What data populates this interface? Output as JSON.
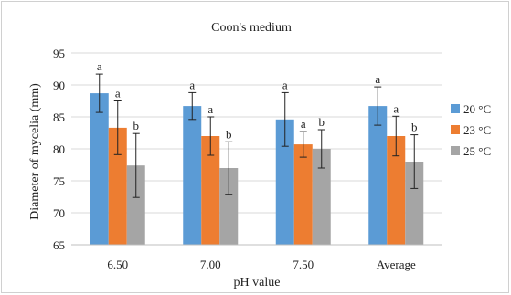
{
  "chart_data": {
    "type": "bar",
    "title": "Coon's medium",
    "xlabel": "pH value",
    "ylabel": "Diameter of mycelia (mm)",
    "ylim": [
      65,
      95
    ],
    "yticks": [
      65,
      70,
      75,
      80,
      85,
      90,
      95
    ],
    "grid": true,
    "legend_position": "right",
    "categories": [
      "6.50",
      "7.00",
      "7.50",
      "Average"
    ],
    "series": [
      {
        "name": "20 °C",
        "color": "#5b9bd5",
        "values": [
          88.7,
          86.7,
          84.6,
          86.7
        ],
        "errors": [
          3.0,
          2.1,
          4.2,
          3.0
        ],
        "labels": [
          "a",
          "a",
          "a",
          "a"
        ]
      },
      {
        "name": "23 °C",
        "color": "#ed7d31",
        "values": [
          83.3,
          82.0,
          80.7,
          82.0
        ],
        "errors": [
          4.2,
          3.0,
          2.0,
          3.1
        ],
        "labels": [
          "a",
          "a",
          "a",
          "a"
        ]
      },
      {
        "name": "25 °C",
        "color": "#a5a5a5",
        "values": [
          77.4,
          77.0,
          80.0,
          78.0
        ],
        "errors": [
          5.0,
          4.1,
          3.0,
          4.2
        ],
        "labels": [
          "b",
          "b",
          "b",
          "b"
        ]
      }
    ]
  }
}
